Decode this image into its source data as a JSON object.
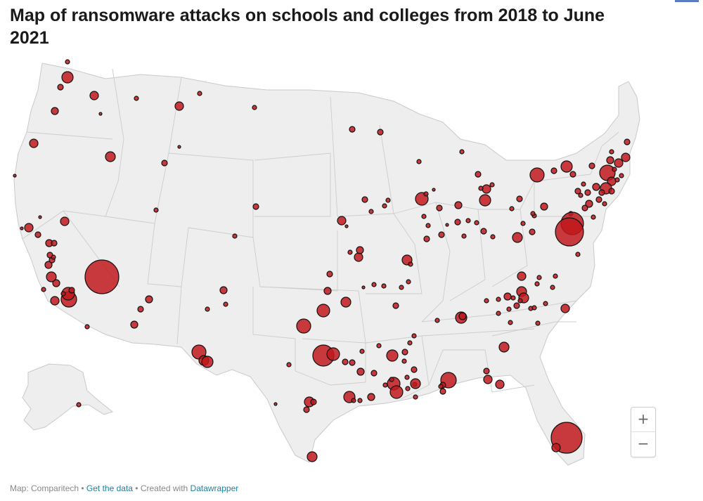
{
  "header": {
    "title": "Map of ransomware attacks on schools and colleges from 2018 to June 2021"
  },
  "map": {
    "land_color": "#eeeeee",
    "border_color": "#c9c9c9",
    "marker_color": "#c0191c",
    "marker_stroke": "#111111",
    "zoom_in_label": "+",
    "zoom_out_label": "−"
  },
  "footer": {
    "source_prefix": "Map: Comparitech",
    "sep1": " • ",
    "get_data": "Get the data",
    "sep2": " • Created with ",
    "datawrapper": "Datawrapper"
  }
}
